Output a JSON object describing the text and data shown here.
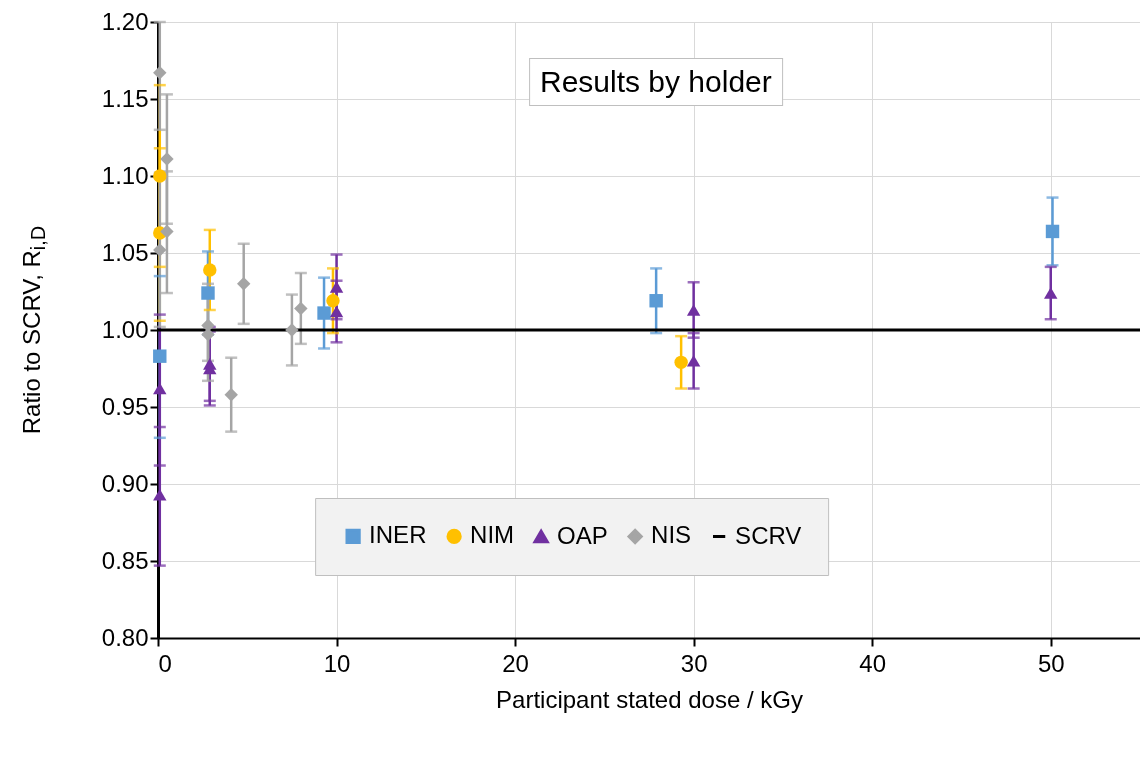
{
  "chart_data": {
    "type": "scatter",
    "title": "Results by holder",
    "xlabel": "Participant stated dose / kGy",
    "ylabel": "Ratio to SCRV, R$_{i,D}$",
    "xlim": [
      0,
      55
    ],
    "xticks": [
      0,
      10,
      20,
      30,
      40,
      50
    ],
    "ylim": [
      0.8,
      1.2
    ],
    "yticks": [
      {
        "value": 0.8,
        "label": "0.80"
      },
      0.85,
      {
        "value": 0.9,
        "label": "0.90"
      },
      0.95,
      {
        "value": 1.0,
        "label": "1.00"
      },
      1.05,
      {
        "value": 1.1,
        "label": "1.10"
      },
      1.15,
      {
        "value": 1.2,
        "label": "1.20"
      }
    ],
    "grid": true,
    "legend": "bottom",
    "series": [
      {
        "name": "INER",
        "color": "#5b9bd5",
        "marker": "square",
        "x": [
          0.1,
          2.8,
          9.3,
          27.9,
          50.1
        ],
        "values": [
          0.983,
          1.024,
          1.011,
          1.019,
          1.064
        ],
        "errors": [
          [
            0.93,
            1.035
          ],
          0.027,
          0.023,
          0.021,
          0.022
        ]
      },
      {
        "name": "NIM",
        "color": "#ffc000",
        "marker": "circle",
        "x": [
          0.1,
          0.1,
          2.9,
          9.8,
          29.3
        ],
        "values": [
          1.1,
          1.063,
          1.039,
          1.019,
          0.979
        ],
        "errors": [
          [
            1.041,
            1.159
          ],
          [
            1.006,
            1.118
          ],
          0.026,
          0.021,
          0.017
        ]
      },
      {
        "name": "OAP",
        "color": "#7030a0",
        "marker": "triangle",
        "x": [
          0.1,
          0.1,
          2.9,
          2.9,
          10,
          10,
          30,
          30,
          50
        ],
        "values": [
          0.962,
          0.893,
          0.978,
          0.975,
          1.028,
          1.012,
          1.013,
          0.98,
          1.024
        ],
        "errors": [
          [
            0.912,
            1.01
          ],
          [
            0.847,
            0.937
          ],
          0.024,
          0.024,
          0.021,
          0.02,
          0.018,
          0.018,
          0.017
        ]
      },
      {
        "name": "NIS",
        "color": "#a5a5a5",
        "marker": "diamond",
        "x": [
          0.1,
          0.1,
          0.5,
          0.5,
          2.8,
          2.8,
          4.1,
          4.8,
          7.5,
          8.0
        ],
        "values": [
          1.167,
          1.052,
          1.111,
          1.064,
          1.003,
          0.997,
          0.958,
          1.03,
          1.0,
          1.014
        ],
        "errors": [
          [
            1.13,
            1.2
          ],
          0.05,
          [
            1.069,
            1.153
          ],
          [
            1.024,
            1.103
          ],
          [
            0.98,
            1.03
          ],
          [
            0.967,
            1.027
          ],
          0.024,
          0.026,
          0.023,
          0.023
        ]
      }
    ],
    "ref_lines": [
      {
        "axis": "y",
        "value": 1.0,
        "label": "SCRV",
        "color": "#000000"
      }
    ]
  }
}
